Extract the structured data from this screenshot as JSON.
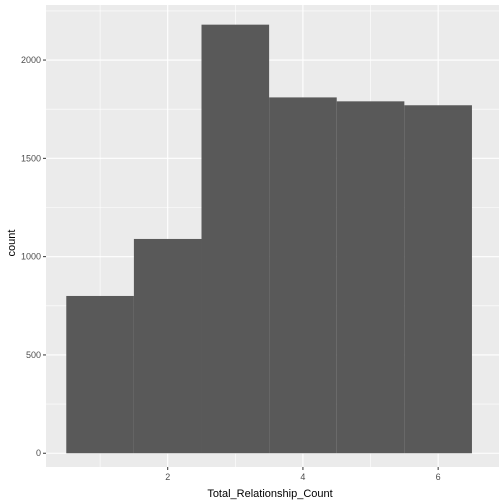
{
  "chart_data": {
    "type": "bar",
    "subtype": "histogram",
    "xlabel": "Total_Relationship_Count",
    "ylabel": "count",
    "bins": [
      {
        "x_start": 0.5,
        "x_end": 1.5,
        "count": 800
      },
      {
        "x_start": 1.5,
        "x_end": 2.5,
        "count": 1090
      },
      {
        "x_start": 2.5,
        "x_end": 3.5,
        "count": 2180
      },
      {
        "x_start": 3.5,
        "x_end": 4.5,
        "count": 1810
      },
      {
        "x_start": 4.5,
        "x_end": 5.5,
        "count": 1790
      },
      {
        "x_start": 5.5,
        "x_end": 6.5,
        "count": 1770
      }
    ],
    "xlim": [
      0.2,
      6.9
    ],
    "ylim": [
      -70,
      2280
    ],
    "x_ticks": [
      2,
      4,
      6
    ],
    "y_ticks": [
      0,
      500,
      1000,
      1500,
      2000
    ],
    "grid": true,
    "bar_color": "#595959",
    "panel_background": "#ebebeb",
    "grid_color": "#ffffff"
  }
}
